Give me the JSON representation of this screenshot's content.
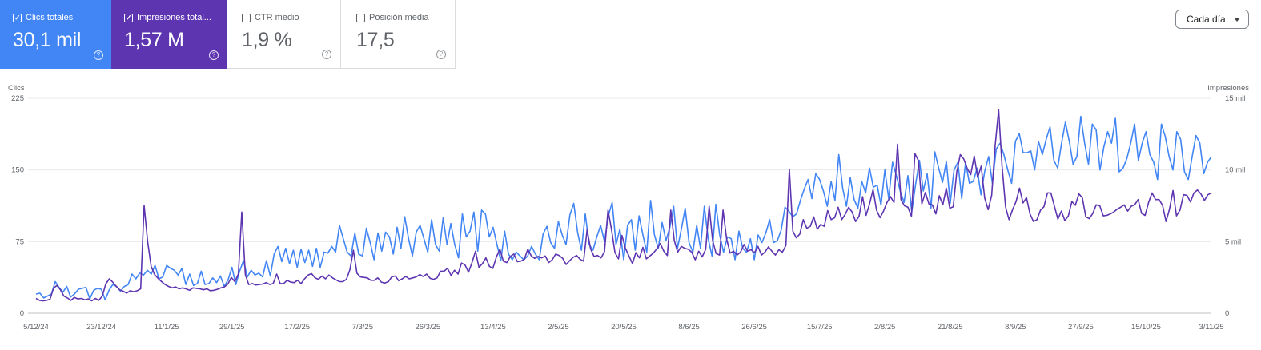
{
  "metrics": [
    {
      "label": "Clics totales",
      "value": "30,1 mil",
      "checked": true,
      "color": "#4285f4"
    },
    {
      "label": "Impresiones total...",
      "value": "1,57 M",
      "checked": true,
      "color": "#5e35b1"
    },
    {
      "label": "CTR medio",
      "value": "1,9 %",
      "checked": false,
      "color": "#ffffff"
    },
    {
      "label": "Posición media",
      "value": "17,5",
      "checked": false,
      "color": "#ffffff"
    }
  ],
  "help_glyph": "?",
  "check_glyph": "✓",
  "granularity": {
    "selected": "Cada día"
  },
  "chart_data": {
    "type": "line",
    "left_axis": {
      "title": "Clics",
      "ticks": [
        "0",
        "75",
        "150",
        "225"
      ],
      "range": [
        0,
        225
      ]
    },
    "right_axis": {
      "title": "Impresiones",
      "ticks": [
        "0",
        "5 mil",
        "10 mil",
        "15 mil"
      ],
      "range": [
        0,
        15000
      ]
    },
    "x_tick_labels": [
      "5/12/24",
      "23/12/24",
      "11/1/25",
      "29/1/25",
      "17/2/25",
      "7/3/25",
      "26/3/25",
      "13/4/25",
      "2/5/25",
      "20/5/25",
      "8/6/25",
      "26/6/25",
      "15/7/25",
      "2/8/25",
      "21/8/25",
      "8/9/25",
      "27/9/25",
      "15/10/25",
      "3/11/25"
    ],
    "grid": true,
    "series": [
      {
        "name": "Clics totales",
        "axis": "left",
        "color": "#4285f4",
        "values": [
          20,
          21,
          16,
          18,
          20,
          33,
          27,
          22,
          28,
          17,
          20,
          25,
          26,
          27,
          15,
          24,
          26,
          25,
          14,
          24,
          30,
          28,
          23,
          28,
          30,
          41,
          36,
          42,
          40,
          45,
          41,
          50,
          36,
          38,
          50,
          47,
          45,
          40,
          47,
          30,
          41,
          29,
          31,
          44,
          30,
          31,
          37,
          32,
          39,
          28,
          35,
          48,
          30,
          44,
          55,
          38,
          45,
          40,
          42,
          38,
          55,
          39,
          62,
          70,
          54,
          68,
          52,
          66,
          48,
          67,
          53,
          66,
          49,
          68,
          48,
          64,
          63,
          70,
          64,
          92,
          78,
          64,
          60,
          84,
          62,
          60,
          89,
          74,
          56,
          84,
          65,
          85,
          80,
          62,
          90,
          68,
          101,
          78,
          60,
          85,
          92,
          78,
          64,
          98,
          72,
          65,
          100,
          72,
          94,
          72,
          58,
          104,
          80,
          86,
          106,
          65,
          108,
          104,
          80,
          90,
          72,
          55,
          86,
          62,
          56,
          64,
          60,
          56,
          60,
          70,
          62,
          56,
          83,
          91,
          74,
          68,
          96,
          82,
          72,
          103,
          115,
          85,
          66,
          104,
          72,
          66,
          80,
          92,
          75,
          102,
          116,
          72,
          88,
          56,
          92,
          98,
          66,
          102,
          82,
          64,
          118,
          82,
          68,
          95,
          76,
          90,
          112,
          68,
          88,
          110,
          74,
          64,
          92,
          68,
          112,
          78,
          60,
          114,
          82,
          64,
          80,
          78,
          56,
          86,
          68,
          64,
          78,
          56,
          82,
          74,
          84,
          98,
          74,
          76,
          87,
          111,
          107,
          101,
          104,
          118,
          130,
          140,
          120,
          146,
          140,
          128,
          112,
          138,
          118,
          166,
          131,
          112,
          142,
          119,
          110,
          138,
          126,
          152,
          132,
          134,
          113,
          150,
          120,
          158,
          144,
          128,
          116,
          144,
          106,
          135,
          160,
          128,
          146,
          110,
          169,
          152,
          137,
          159,
          115,
          150,
          158,
          120,
          158,
          136,
          138,
          152,
          124,
          149,
          164,
          136,
          172,
          178,
          166,
          150,
          136,
          180,
          188,
          168,
          168,
          170,
          150,
          180,
          166,
          182,
          195,
          160,
          152,
          178,
          200,
          180,
          156,
          164,
          206,
          178,
          156,
          198,
          192,
          150,
          174,
          190,
          178,
          204,
          148,
          152,
          162,
          178,
          198,
          160,
          178,
          190,
          166,
          158,
          140,
          198,
          185,
          164,
          150,
          190,
          182,
          148,
          140,
          164,
          186,
          178,
          146,
          158,
          164
        ],
        "y_max": 225
      },
      {
        "name": "Impresiones total...",
        "axis": "right",
        "color": "#5e35b1",
        "values": [
          1033,
          900,
          867,
          900,
          967,
          1733,
          1933,
          1633,
          1200,
          1067,
          900,
          1100,
          1000,
          1033,
          933,
          1000,
          867,
          1033,
          900,
          1200,
          2033,
          2400,
          2167,
          1867,
          1633,
          1533,
          1400,
          1567,
          1500,
          1567,
          1700,
          7533,
          5000,
          3267,
          2700,
          2433,
          2200,
          2000,
          1867,
          1767,
          1833,
          1700,
          1767,
          1700,
          1600,
          1767,
          1733,
          1700,
          1633,
          1700,
          1567,
          1600,
          1667,
          1767,
          1833,
          2033,
          2500,
          2200,
          2733,
          7067,
          2700,
          2000,
          2067,
          1967,
          2000,
          2033,
          2133,
          2000,
          2067,
          2733,
          2067,
          2067,
          2300,
          2167,
          2133,
          2300,
          2067,
          2400,
          2667,
          2767,
          2467,
          2367,
          2600,
          2400,
          2667,
          2467,
          2333,
          2200,
          2200,
          2367,
          3033,
          4400,
          2800,
          2533,
          2500,
          2467,
          2300,
          2300,
          2467,
          2167,
          2100,
          2200,
          2533,
          2600,
          2267,
          2400,
          2567,
          2400,
          2467,
          2533,
          2700,
          2567,
          2733,
          2433,
          2367,
          2467,
          2933,
          2933,
          3133,
          2633,
          3000,
          2733,
          3500,
          3367,
          2867,
          3533,
          4333,
          3200,
          3467,
          3867,
          3267,
          3133,
          3933,
          4467,
          3633,
          3533,
          3967,
          4133,
          3600,
          3633,
          3767,
          4467,
          4000,
          3833,
          3967,
          3867,
          4000,
          3533,
          3733,
          4133,
          4033,
          3833,
          3400,
          3667,
          3900,
          4033,
          3767,
          3633,
          5833,
          4500,
          3967,
          4033,
          3867,
          4300,
          7200,
          5833,
          4233,
          3800,
          5433,
          4533,
          4000,
          3467,
          4233,
          3867,
          4600,
          3800,
          4000,
          4200,
          4500,
          4867,
          4333,
          4033,
          7200,
          5067,
          4267,
          4667,
          4533,
          4467,
          4267,
          3733,
          4333,
          3933,
          4467,
          7467,
          5067,
          4167,
          4067,
          7200,
          5200,
          4200,
          4333,
          4067,
          4267,
          4800,
          4333,
          4433,
          4233,
          4667,
          4067,
          4267,
          4633,
          4333,
          4067,
          4433,
          4267,
          4733,
          10067,
          5733,
          5267,
          5533,
          6533,
          5933,
          6067,
          6733,
          5867,
          6200,
          6067,
          7167,
          6533,
          6667,
          7400,
          6533,
          6900,
          7400,
          7067,
          6400,
          6767,
          8133,
          6833,
          7633,
          8633,
          7200,
          6667,
          7133,
          7733,
          8133,
          7733,
          11800,
          7933,
          7500,
          7400,
          6767,
          11133,
          10667,
          7633,
          8433,
          7633,
          7567,
          6933,
          8200,
          7567,
          8733,
          7333,
          7433,
          9867,
          11067,
          10767,
          10100,
          9667,
          10967,
          9467,
          10267,
          8033,
          7233,
          8233,
          11667,
          14200,
          10267,
          7400,
          6533,
          7233,
          7800,
          8733,
          7700,
          8067,
          6933,
          6400,
          6533,
          7200,
          7433,
          8400,
          8400,
          7467,
          6567,
          7133,
          6467,
          6800,
          7800,
          7533,
          8333,
          8067,
          6733,
          6600,
          6967,
          7567,
          7500,
          6800,
          6833,
          6933,
          7067,
          7267,
          7400,
          7567,
          7133,
          7467,
          7567,
          7933,
          6967,
          6833,
          7733,
          8400,
          7933,
          7933,
          7533,
          6400,
          7267,
          8567,
          6800,
          7200,
          8267,
          8233,
          7767,
          8400,
          8600,
          8333,
          7867,
          8267,
          8400
        ]
      }
    ]
  }
}
